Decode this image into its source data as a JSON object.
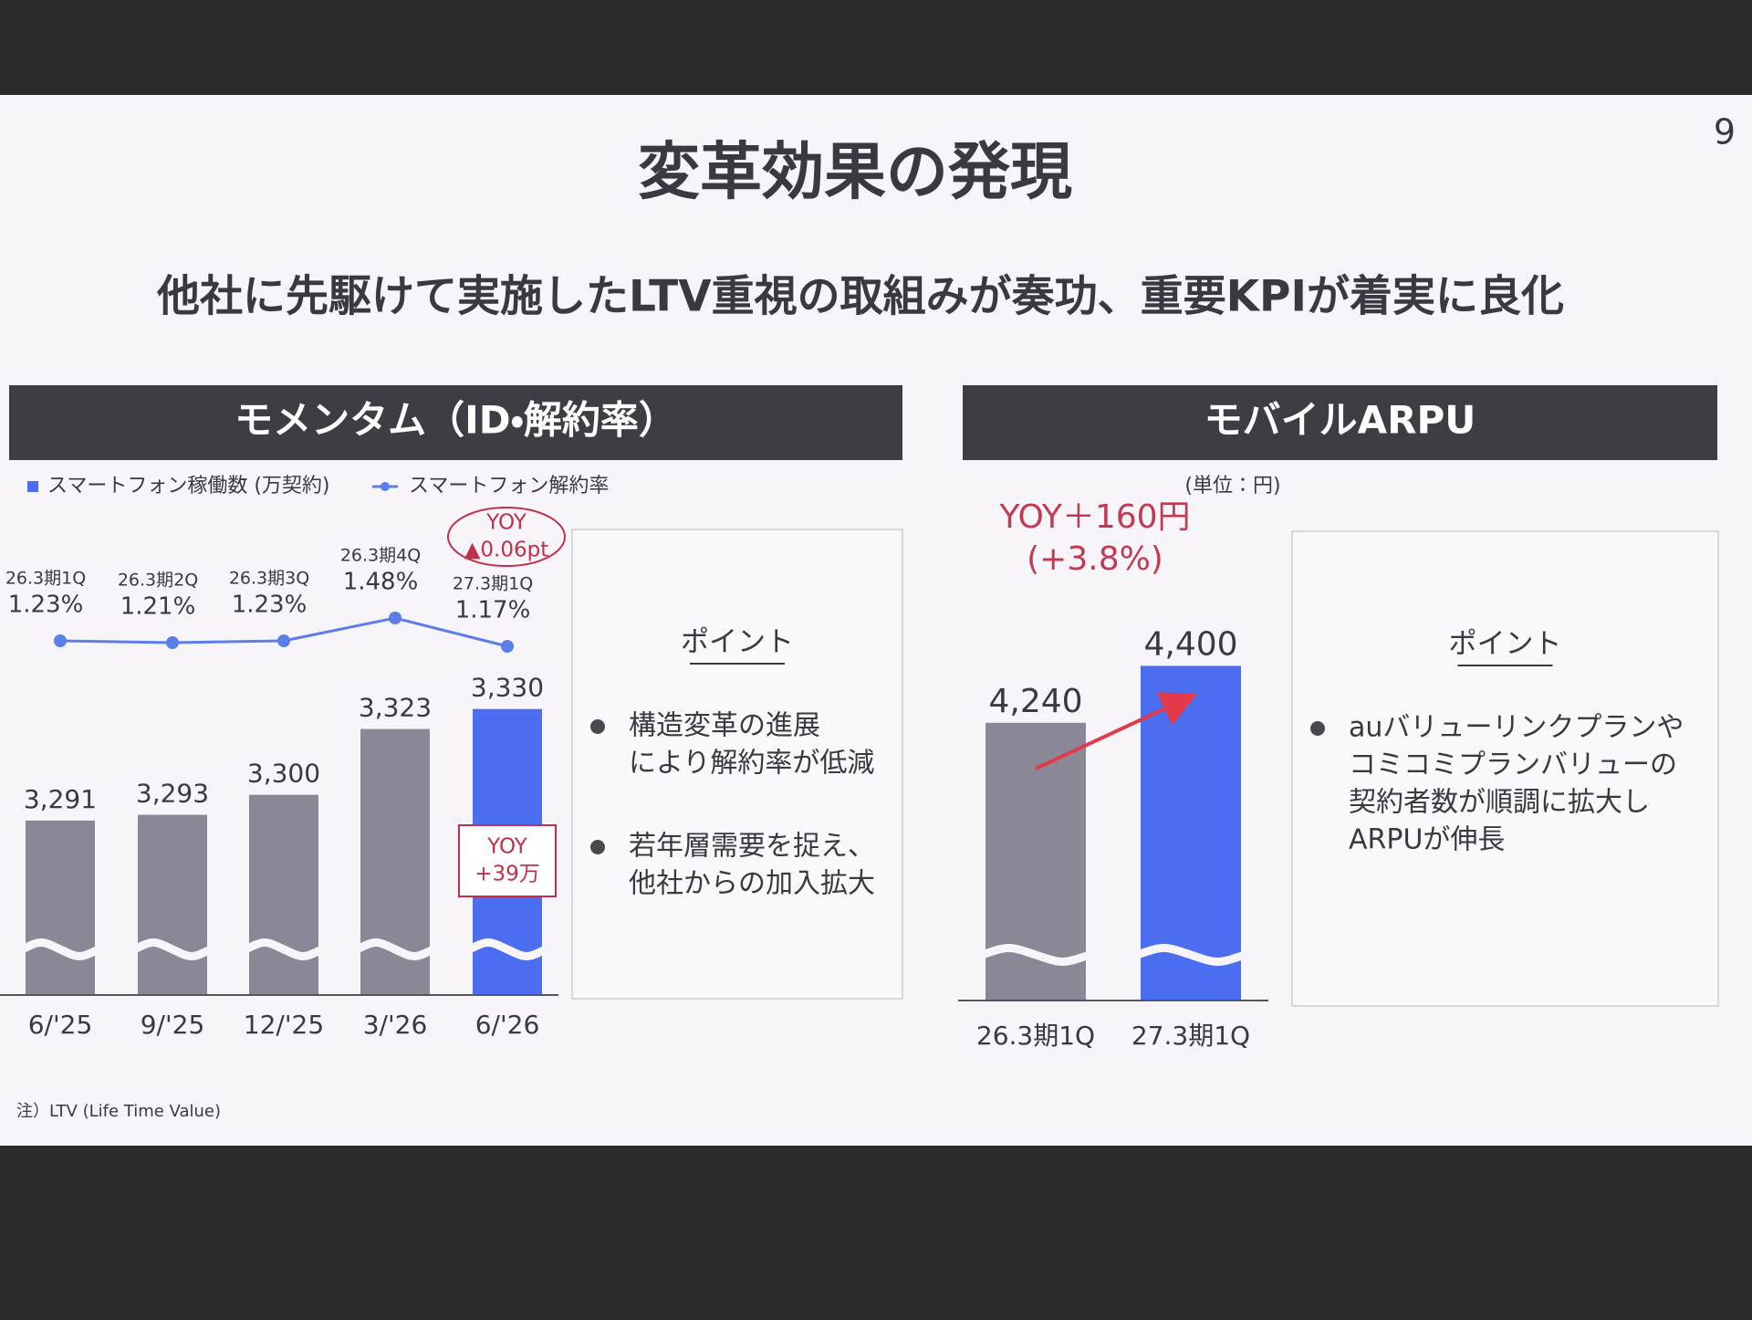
{
  "slide": {
    "title": "変革効果の発現",
    "subtitle": "他社に先駆けて実施したLTV重視の取組みが奏功、重要KPIが着実に良化",
    "page_number": "9",
    "note": "注）LTV (Life Time Value)"
  },
  "chart_data": [
    {
      "type": "bar",
      "title": "モメンタム（ID・解約率）",
      "categories": [
        "6/'25",
        "9/'25",
        "12/'25",
        "3/'26",
        "6/'26"
      ],
      "series": [
        {
          "name": "スマートフォン稼働数 (万契約)",
          "type": "bar",
          "color": "#8a8797",
          "colors": [
            "#8a8797",
            "#8a8797",
            "#8a8797",
            "#8a8797",
            "#4b6ef0"
          ],
          "values": [
            3291,
            3293,
            3300,
            3323,
            3330
          ],
          "value_labels": [
            "3,291",
            "3,293",
            "3,300",
            "3,323",
            "3,330"
          ]
        },
        {
          "name": "スマートフォン解約率",
          "type": "line",
          "axis": "y2",
          "color": "#5b7ee8",
          "values": [
            1.23,
            1.21,
            1.23,
            1.48,
            1.17
          ],
          "value_labels": [
            "1.23%",
            "1.21%",
            "1.23%",
            "1.48%",
            "1.17%"
          ],
          "point_labels": [
            "26.3期1Q",
            "26.3期2Q",
            "26.3期3Q",
            "26.3期4Q",
            "27.3期1Q"
          ]
        }
      ],
      "ylim": [
        3230,
        3350
      ],
      "y2lim": [
        0,
        3
      ],
      "annotations": [
        {
          "lines": [
            "YOY",
            "▲0.06pt"
          ],
          "color": "#c0304a"
        },
        {
          "lines": [
            "YOY",
            "+39万"
          ],
          "color": "#c0304a"
        }
      ],
      "points": {
        "title": "ポイント",
        "bullets": [
          [
            "構造変革の進展",
            "により解約率が低減"
          ],
          [
            "若年層需要を捉え、",
            "他社からの加入拡大"
          ]
        ]
      }
    },
    {
      "type": "bar",
      "title": "モバイルARPU",
      "unit": "(単位：円)",
      "categories": [
        "26.3期1Q",
        "27.3期1Q"
      ],
      "series": [
        {
          "name": "モバイルARPU",
          "type": "bar",
          "color": "#8a8797",
          "colors": [
            "#8a8797",
            "#4b6ef0"
          ],
          "values": [
            4240,
            4400
          ],
          "value_labels": [
            "4,240",
            "4,400"
          ]
        }
      ],
      "ylim": [
        3460,
        4660
      ],
      "annotations": [
        {
          "lines": [
            "YOY＋160円",
            "(+3.8%)"
          ],
          "color": "#c23a52"
        }
      ],
      "points": {
        "title": "ポイント",
        "bullets": [
          [
            "auバリューリンクプランや",
            "コミコミプランバリューの",
            "契約者数が順調に拡大し",
            "ARPUが伸長"
          ]
        ]
      }
    }
  ]
}
